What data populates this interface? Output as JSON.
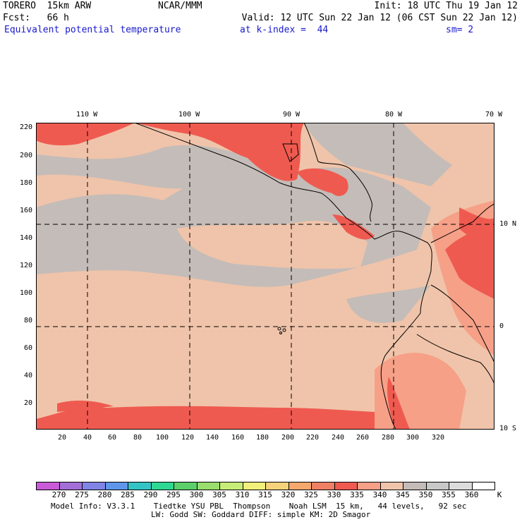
{
  "header": {
    "model": "TORERO  15km ARW",
    "org": "NCAR/MMM",
    "init": "Init: 18 UTC Thu 19 Jan 12",
    "fcst": "Fcst:   66 h",
    "valid": "Valid: 12 UTC Sun 22 Jan 12 (06 CST Sun 22 Jan 12)",
    "field": "Equivalent potential temperature",
    "level": "at k-index =  44",
    "smooth": "sm= 2"
  },
  "axes": {
    "top_lon_labels": [
      "110 W",
      "100 W",
      "90 W",
      "80 W",
      "70 W"
    ],
    "right_lat_labels": [
      "10 N",
      "0",
      "10 S"
    ],
    "left_grid_labels": [
      "220",
      "200",
      "180",
      "160",
      "140",
      "120",
      "100",
      "80",
      "60",
      "40",
      "20"
    ],
    "bottom_grid_labels": [
      "20",
      "40",
      "60",
      "80",
      "100",
      "120",
      "140",
      "160",
      "180",
      "200",
      "220",
      "240",
      "260",
      "280",
      "300",
      "320"
    ]
  },
  "colorbar": {
    "labels": [
      "270",
      "275",
      "280",
      "285",
      "290",
      "295",
      "300",
      "305",
      "310",
      "315",
      "320",
      "325",
      "330",
      "335",
      "340",
      "345",
      "350",
      "355",
      "360"
    ],
    "unit": "K",
    "colors": [
      "#c95ad8",
      "#a36ed8",
      "#7f84e6",
      "#5f96ea",
      "#34c4c4",
      "#2ed894",
      "#5ccf6a",
      "#98dd6e",
      "#c8ec78",
      "#f0f07a",
      "#f6d27a",
      "#f4a86e",
      "#ef8064",
      "#ef5a50",
      "#f6a088",
      "#f0c4aa",
      "#c4bcb8",
      "#c8c8c8",
      "#dcdcdc",
      "#ffffff"
    ]
  },
  "footer": {
    "line1": "Model Info: V3.3.1    Tiedtke YSU PBL  Thompson    Noah LSM  15 km,   44 levels,   92 sec",
    "line2": "LW: Godd SW: Goddard DIFF: simple KM: 2D Smagor"
  },
  "map_colors": {
    "ocean_warm": "#f0c4aa",
    "gray": "#c4bcb8",
    "bluegray": "#c0c4cc",
    "salmon": "#f6a088",
    "red": "#ef5a50",
    "deep_red": "#ef4a44",
    "orange": "#f4a86e"
  }
}
